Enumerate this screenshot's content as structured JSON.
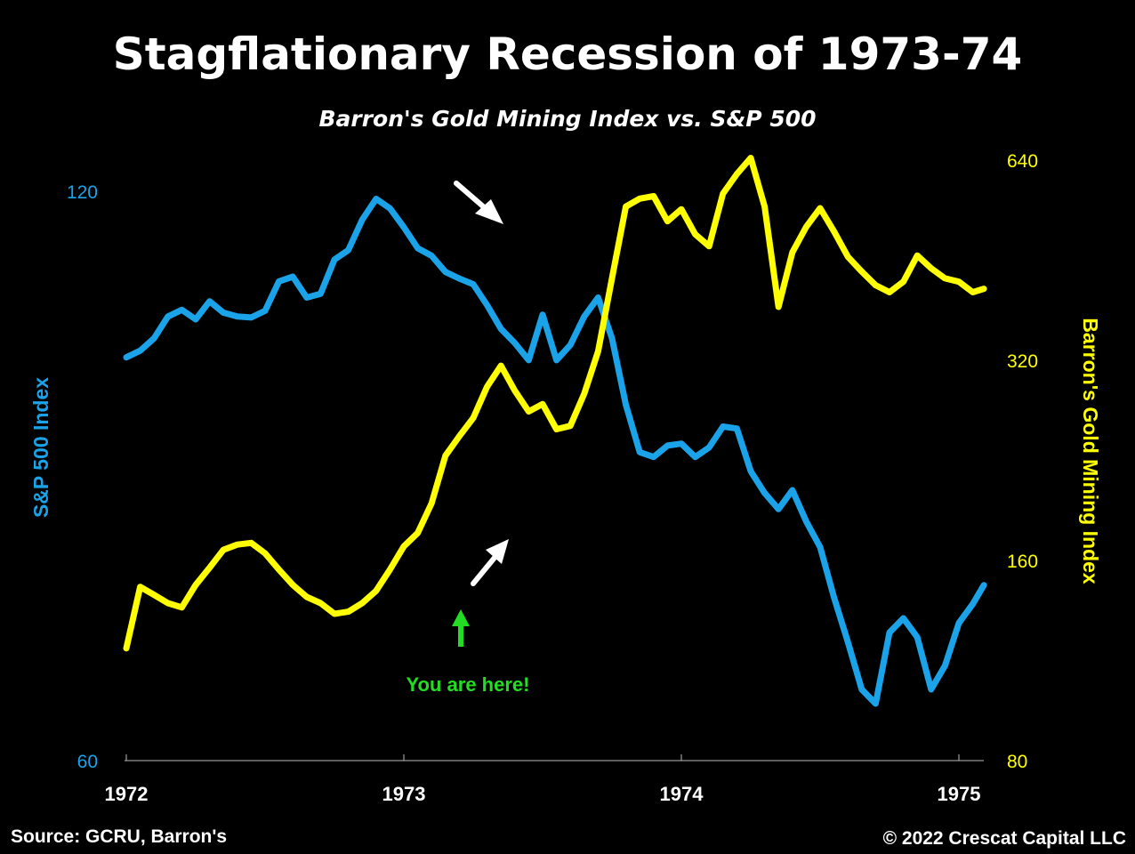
{
  "chart_data": {
    "type": "line",
    "title": "Stagflationary Recession of 1973-74",
    "subtitle": "Barron's Gold Mining Index vs. S&P 500",
    "y_left_label": "S&P 500 Index",
    "y_right_label": "Barron's Gold Mining Index",
    "y_left_ticks": [
      "120",
      "60"
    ],
    "y_right_ticks": [
      "640",
      "320",
      "160",
      "80"
    ],
    "x_ticks": [
      "1972",
      "1973",
      "1974",
      "1975"
    ],
    "y_left_range": [
      60,
      120
    ],
    "y_right_range": [
      80,
      640
    ],
    "y_right_scale": "log",
    "x_range": [
      1972.0,
      1975.09
    ],
    "grid": false,
    "annotation": "You are here!",
    "source": "Source: GCRU, Barron's",
    "copyright": "© 2022 Crescat Capital LLC",
    "colors": {
      "sp500": "#1aa3e8",
      "gold": "#ffff00",
      "annotation": "#22dd22",
      "arrows": "#ffffff"
    },
    "series": [
      {
        "name": "S&P 500 Index",
        "axis": "left",
        "x": [
          1972.0,
          1972.05,
          1972.1,
          1972.15,
          1972.2,
          1972.25,
          1972.3,
          1972.35,
          1972.4,
          1972.45,
          1972.5,
          1972.55,
          1972.6,
          1972.65,
          1972.7,
          1972.75,
          1972.8,
          1972.85,
          1972.9,
          1972.95,
          1973.0,
          1973.05,
          1973.1,
          1973.15,
          1973.2,
          1973.25,
          1973.3,
          1973.35,
          1973.4,
          1973.45,
          1973.5,
          1973.55,
          1973.6,
          1973.65,
          1973.7,
          1973.75,
          1973.8,
          1973.85,
          1973.9,
          1973.95,
          1974.0,
          1974.05,
          1974.1,
          1974.15,
          1974.2,
          1974.25,
          1974.3,
          1974.35,
          1974.4,
          1974.45,
          1974.5,
          1974.55,
          1974.6,
          1974.65,
          1974.7,
          1974.75,
          1974.8,
          1974.85,
          1974.9,
          1974.95,
          1975.0,
          1975.05,
          1975.09
        ],
        "values": [
          102.5,
          103.2,
          104.5,
          106.8,
          107.5,
          106.5,
          108.4,
          107.2,
          106.8,
          106.7,
          107.4,
          110.5,
          111.0,
          108.8,
          109.2,
          112.8,
          113.8,
          117.0,
          119.2,
          118.2,
          116.2,
          114.0,
          113.2,
          111.5,
          110.8,
          110.2,
          108.0,
          105.5,
          104.0,
          102.2,
          107.0,
          102.2,
          103.8,
          106.8,
          108.8,
          104.5,
          97.5,
          92.5,
          92.0,
          93.2,
          93.4,
          92.0,
          93.0,
          95.2,
          95.0,
          90.5,
          88.2,
          86.5,
          88.5,
          85.2,
          82.5,
          77.2,
          72.5,
          67.5,
          66.0,
          73.5,
          75.0,
          73.0,
          67.5,
          70.0,
          74.5,
          76.5,
          78.5
        ]
      },
      {
        "name": "Barron's Gold Mining Index",
        "axis": "right",
        "x": [
          1972.0,
          1972.05,
          1972.1,
          1972.15,
          1972.2,
          1972.25,
          1972.3,
          1972.35,
          1972.4,
          1972.45,
          1972.5,
          1972.55,
          1972.6,
          1972.65,
          1972.7,
          1972.75,
          1972.8,
          1972.85,
          1972.9,
          1972.95,
          1973.0,
          1973.05,
          1973.1,
          1973.15,
          1973.2,
          1973.25,
          1973.3,
          1973.35,
          1973.4,
          1973.45,
          1973.5,
          1973.55,
          1973.6,
          1973.65,
          1973.7,
          1973.75,
          1973.8,
          1973.85,
          1973.9,
          1973.95,
          1974.0,
          1974.05,
          1974.1,
          1974.15,
          1974.2,
          1974.25,
          1974.3,
          1974.35,
          1974.4,
          1974.45,
          1974.5,
          1974.55,
          1974.6,
          1974.65,
          1974.7,
          1974.75,
          1974.8,
          1974.85,
          1974.9,
          1974.95,
          1975.0,
          1975.05,
          1975.09
        ],
        "values": [
          118,
          146,
          142,
          138,
          136,
          147,
          156,
          166,
          169,
          170,
          164,
          155,
          147,
          141,
          138,
          133,
          134,
          138,
          144,
          155,
          168,
          176,
          195,
          230,
          246,
          262,
          292,
          314,
          288,
          268,
          275,
          252,
          255,
          285,
          330,
          425,
          545,
          560,
          565,
          518,
          540,
          495,
          475,
          570,
          610,
          645,
          545,
          385,
          465,
          508,
          542,
          500,
          458,
          435,
          415,
          405,
          420,
          460,
          440,
          425,
          420,
          405,
          410
        ]
      }
    ]
  }
}
